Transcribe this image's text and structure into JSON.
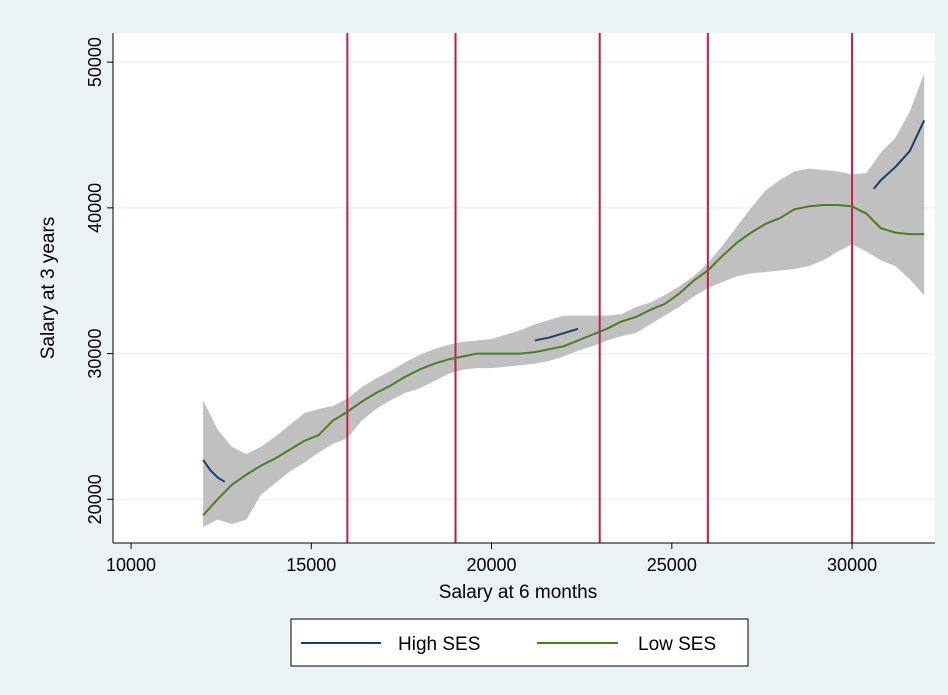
{
  "chart_data": {
    "type": "line",
    "title": "",
    "xlabel": "Salary at 6 months",
    "ylabel": "Salary at 3 years",
    "xlim": [
      9500,
      32300
    ],
    "ylim": [
      17000,
      52000
    ],
    "xticks": [
      10000,
      15000,
      20000,
      25000,
      30000
    ],
    "yticks": [
      20000,
      30000,
      40000,
      50000
    ],
    "xtick_labels": [
      "10000",
      "15000",
      "20000",
      "25000",
      "30000"
    ],
    "ytick_labels": [
      "20000",
      "30000",
      "40000",
      "50000"
    ],
    "grid": "horizontal",
    "legend_position": "bottom",
    "vertical_lines": [
      16000,
      19000,
      23000,
      26000,
      30000
    ],
    "colors": {
      "background": "#eaf2f3",
      "plot_background": "#ffffff",
      "grid": "#eaf2f3",
      "band": "#c0c0c0",
      "vline": "#c8194b",
      "high_ses": "#1a3e68",
      "low_ses": "#4f7a28"
    },
    "confidence_band": {
      "x": [
        12000,
        12400,
        12800,
        13200,
        13600,
        14000,
        14400,
        14800,
        15200,
        15600,
        16000,
        16400,
        16800,
        17200,
        17600,
        18000,
        18400,
        18800,
        19200,
        19600,
        20000,
        20400,
        20800,
        21200,
        21600,
        22000,
        22400,
        22800,
        23200,
        23600,
        24000,
        24400,
        24800,
        25200,
        25600,
        26000,
        26400,
        26800,
        27200,
        27600,
        28000,
        28400,
        28800,
        29200,
        29600,
        30000,
        30400,
        30800,
        31200,
        31600,
        32000
      ],
      "upper": [
        26800,
        24800,
        23600,
        23100,
        23600,
        24300,
        25100,
        25900,
        26200,
        26400,
        26900,
        27700,
        28300,
        28800,
        29400,
        29900,
        30300,
        30600,
        30800,
        30900,
        31000,
        31300,
        31600,
        32000,
        32300,
        32600,
        32600,
        32600,
        32600,
        32700,
        33200,
        33500,
        34000,
        34600,
        35300,
        36200,
        37400,
        38700,
        40000,
        41200,
        41900,
        42500,
        42700,
        42600,
        42500,
        42300,
        42400,
        43800,
        44800,
        46600,
        49200
      ],
      "lower": [
        18100,
        18600,
        18300,
        18600,
        20300,
        21100,
        21900,
        22500,
        23200,
        23800,
        24200,
        25400,
        26200,
        26800,
        27300,
        27600,
        28100,
        28600,
        28900,
        29000,
        29000,
        29100,
        29200,
        29300,
        29500,
        29800,
        30200,
        30500,
        30900,
        31200,
        31400,
        32000,
        32600,
        33200,
        33900,
        34500,
        34900,
        35300,
        35500,
        35600,
        35700,
        35800,
        36000,
        36400,
        37000,
        37500,
        37000,
        36400,
        36000,
        35100,
        34000
      ]
    },
    "series": [
      {
        "name": "High SES",
        "segments": [
          {
            "x": [
              12000,
              12200,
              12400,
              12600
            ],
            "y": [
              22700,
              22000,
              21500,
              21200
            ]
          },
          {
            "x": [
              21200,
              21600,
              22000,
              22400
            ],
            "y": [
              30900,
              31100,
              31400,
              31700
            ]
          },
          {
            "x": [
              30600,
              30800,
              31200,
              31600,
              32000
            ],
            "y": [
              41300,
              41900,
              42800,
              43900,
              46000
            ]
          }
        ]
      },
      {
        "name": "Low SES",
        "x": [
          12000,
          12400,
          12800,
          13200,
          13600,
          14000,
          14400,
          14800,
          15200,
          15600,
          16000,
          16400,
          16800,
          17200,
          17600,
          18000,
          18400,
          18800,
          19200,
          19600,
          20000,
          20400,
          20800,
          21200,
          21600,
          22000,
          22400,
          22800,
          23200,
          23600,
          24000,
          24400,
          24800,
          25200,
          25600,
          26000,
          26400,
          26800,
          27200,
          27600,
          28000,
          28400,
          28800,
          29200,
          29600,
          30000,
          30400,
          30800,
          31200,
          31600,
          32000
        ],
        "y": [
          18900,
          20000,
          21000,
          21700,
          22300,
          22800,
          23400,
          24000,
          24400,
          25400,
          26000,
          26700,
          27300,
          27800,
          28400,
          28900,
          29300,
          29600,
          29800,
          30000,
          30000,
          30000,
          30000,
          30100,
          30300,
          30500,
          30900,
          31300,
          31700,
          32200,
          32500,
          33000,
          33400,
          34100,
          35000,
          35700,
          36700,
          37600,
          38300,
          38900,
          39300,
          39900,
          40100,
          40200,
          40200,
          40100,
          39600,
          38600,
          38300,
          38200,
          38200
        ]
      }
    ]
  }
}
